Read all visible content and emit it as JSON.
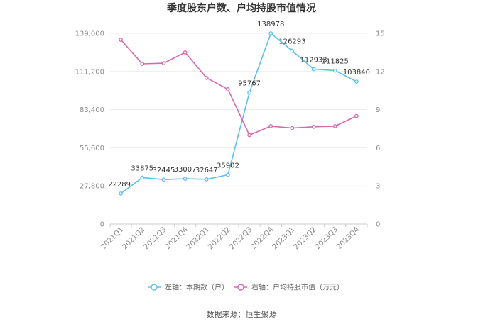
{
  "chart_data": {
    "type": "line",
    "title": "季度股东户数、户均持股市值情况",
    "categories": [
      "2021Q1",
      "2021Q2",
      "2021Q3",
      "2021Q4",
      "2022Q1",
      "2022Q2",
      "2022Q3",
      "2022Q4",
      "2023Q1",
      "2023Q2",
      "2023Q3",
      "2023Q4"
    ],
    "left_axis": {
      "min": 0,
      "max": 139000,
      "ticks": [
        0,
        27800,
        55600,
        83400,
        111200,
        139000
      ],
      "tick_labels": [
        "0",
        "27,800",
        "55,600",
        "83,400",
        "111,200",
        "139,000"
      ]
    },
    "right_axis": {
      "min": 0,
      "max": 15,
      "ticks": [
        0,
        3,
        6,
        9,
        12,
        15
      ],
      "tick_labels": [
        "0",
        "3",
        "6",
        "9",
        "12",
        "15"
      ]
    },
    "series": [
      {
        "name": "左轴：本期数（户）",
        "axis": "left",
        "color": "#5bc0eb",
        "values": [
          22289,
          33875,
          32445,
          33007,
          32647,
          35902,
          95767,
          138978,
          126293,
          112933,
          111825,
          103840
        ],
        "labels": [
          "22289",
          "33875",
          "32445",
          "33007",
          "32647",
          "35902",
          "95767",
          "138978",
          "126293",
          "112933",
          "111825",
          "103840"
        ]
      },
      {
        "name": "右轴：户均持股市值（万元）",
        "axis": "right",
        "color": "#d866b0",
        "values": [
          14.5,
          12.6,
          12.65,
          13.5,
          11.5,
          10.6,
          7.0,
          7.7,
          7.55,
          7.65,
          7.7,
          8.5
        ]
      }
    ],
    "grid": true,
    "legend_position": "bottom"
  },
  "source_text": "数据来源：恒生聚源"
}
